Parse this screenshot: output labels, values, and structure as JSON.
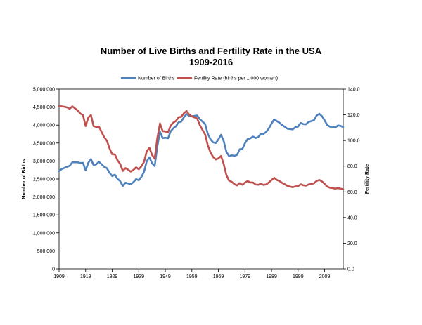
{
  "chart_data": {
    "type": "line",
    "title": "Number of Live Births and Fertility Rate in the USA",
    "subtitle": "1909-2016",
    "legend_position": "top",
    "grid": false,
    "x": {
      "start": 1909,
      "end": 2016,
      "ticks": [
        1909,
        1919,
        1929,
        1939,
        1949,
        1959,
        1969,
        1979,
        1989,
        1999,
        2009
      ],
      "tick_labels": [
        "1909",
        "1919",
        "1929",
        "1939",
        "1949",
        "1959",
        "1969",
        "1979",
        "1989",
        "1999",
        "2009"
      ]
    },
    "y_left": {
      "label": "Number of Births",
      "range": [
        0,
        5000000
      ],
      "ticks": [
        0,
        500000,
        1000000,
        1500000,
        2000000,
        2500000,
        3000000,
        3500000,
        4000000,
        4500000,
        5000000
      ],
      "tick_labels": [
        "0",
        "500,000",
        "1,000,000",
        "1,500,000",
        "2,000,000",
        "2,500,000",
        "3,000,000",
        "3,500,000",
        "4,000,000",
        "4,500,000",
        "5,000,000"
      ]
    },
    "y_right": {
      "label": "Fertility Rate",
      "range": [
        0,
        140
      ],
      "ticks": [
        0,
        20,
        40,
        60,
        80,
        100,
        120,
        140
      ],
      "tick_labels": [
        "0.0",
        "20.0",
        "40.0",
        "60.0",
        "80.0",
        "100.0",
        "120.0",
        "140.0"
      ]
    },
    "series": [
      {
        "name": "Number of Births",
        "axis": "left",
        "color": "#4f81bd",
        "x": [
          1909,
          1910,
          1911,
          1912,
          1913,
          1914,
          1915,
          1916,
          1917,
          1918,
          1919,
          1920,
          1921,
          1922,
          1923,
          1924,
          1925,
          1926,
          1927,
          1928,
          1929,
          1930,
          1931,
          1932,
          1933,
          1934,
          1935,
          1936,
          1937,
          1938,
          1939,
          1940,
          1941,
          1942,
          1943,
          1944,
          1945,
          1946,
          1947,
          1948,
          1949,
          1950,
          1951,
          1952,
          1953,
          1954,
          1955,
          1956,
          1957,
          1958,
          1959,
          1960,
          1961,
          1962,
          1963,
          1964,
          1965,
          1966,
          1967,
          1968,
          1969,
          1970,
          1971,
          1972,
          1973,
          1974,
          1975,
          1976,
          1977,
          1978,
          1979,
          1980,
          1981,
          1982,
          1983,
          1984,
          1985,
          1986,
          1987,
          1988,
          1989,
          1990,
          1991,
          1992,
          1993,
          1994,
          1995,
          1996,
          1997,
          1998,
          1999,
          2000,
          2001,
          2002,
          2003,
          2004,
          2005,
          2006,
          2007,
          2008,
          2009,
          2010,
          2011,
          2012,
          2013,
          2014,
          2015,
          2016
        ],
        "values": [
          2718000,
          2777000,
          2809000,
          2840000,
          2869000,
          2965000,
          2965000,
          2964000,
          2944000,
          2948000,
          2740000,
          2950000,
          3055000,
          2882000,
          2910000,
          2979000,
          2909000,
          2839000,
          2802000,
          2674000,
          2582000,
          2618000,
          2506000,
          2440000,
          2307000,
          2396000,
          2377000,
          2355000,
          2413000,
          2496000,
          2466000,
          2559000,
          2703000,
          2989000,
          3104000,
          2939000,
          2858000,
          3411000,
          3817000,
          3637000,
          3649000,
          3632000,
          3823000,
          3913000,
          3965000,
          4078000,
          4097000,
          4218000,
          4308000,
          4255000,
          4245000,
          4258000,
          4268000,
          4167000,
          4098000,
          4027000,
          3760000,
          3606000,
          3521000,
          3502000,
          3600000,
          3731000,
          3556000,
          3258000,
          3137000,
          3160000,
          3144000,
          3168000,
          3327000,
          3333000,
          3494000,
          3612000,
          3629000,
          3681000,
          3639000,
          3669000,
          3761000,
          3757000,
          3809000,
          3910000,
          4041000,
          4158000,
          4111000,
          4065000,
          4000000,
          3953000,
          3900000,
          3891000,
          3881000,
          3942000,
          3959000,
          4059000,
          4026000,
          4022000,
          4090000,
          4112000,
          4138000,
          4266000,
          4316000,
          4248000,
          4131000,
          3999000,
          3954000,
          3953000,
          3932000,
          3988000,
          3978000,
          3945000
        ]
      },
      {
        "name": "Fertility Rate (births per 1,000 women)",
        "axis": "right",
        "color": "#c0504d",
        "x": [
          1909,
          1910,
          1911,
          1912,
          1913,
          1914,
          1915,
          1916,
          1917,
          1918,
          1919,
          1920,
          1921,
          1922,
          1923,
          1924,
          1925,
          1926,
          1927,
          1928,
          1929,
          1930,
          1931,
          1932,
          1933,
          1934,
          1935,
          1936,
          1937,
          1938,
          1939,
          1940,
          1941,
          1942,
          1943,
          1944,
          1945,
          1946,
          1947,
          1948,
          1949,
          1950,
          1951,
          1952,
          1953,
          1954,
          1955,
          1956,
          1957,
          1958,
          1959,
          1960,
          1961,
          1962,
          1963,
          1964,
          1965,
          1966,
          1967,
          1968,
          1969,
          1970,
          1971,
          1972,
          1973,
          1974,
          1975,
          1976,
          1977,
          1978,
          1979,
          1980,
          1981,
          1982,
          1983,
          1984,
          1985,
          1986,
          1987,
          1988,
          1989,
          1990,
          1991,
          1992,
          1993,
          1994,
          1995,
          1996,
          1997,
          1998,
          1999,
          2000,
          2001,
          2002,
          2003,
          2004,
          2005,
          2006,
          2007,
          2008,
          2009,
          2010,
          2011,
          2012,
          2013,
          2014,
          2015,
          2016
        ],
        "values": [
          126.8,
          126.6,
          126.3,
          125.8,
          124.7,
          126.6,
          125.0,
          123.4,
          121.0,
          119.8,
          111.2,
          117.9,
          119.8,
          111.2,
          110.5,
          110.9,
          106.6,
          102.6,
          99.8,
          93.8,
          89.3,
          89.2,
          84.6,
          81.7,
          76.3,
          78.5,
          77.2,
          75.8,
          77.1,
          79.1,
          77.6,
          79.9,
          83.4,
          91.5,
          94.3,
          88.8,
          85.9,
          101.9,
          113.3,
          107.3,
          107.1,
          106.2,
          111.5,
          113.9,
          115.2,
          118.1,
          118.5,
          121.2,
          122.9,
          120.2,
          118.8,
          118.0,
          117.1,
          112.0,
          108.3,
          104.7,
          96.3,
          90.8,
          87.2,
          85.2,
          86.1,
          87.9,
          81.6,
          73.1,
          68.8,
          67.8,
          66.0,
          65.0,
          66.8,
          65.5,
          67.2,
          68.4,
          67.3,
          67.3,
          65.7,
          65.5,
          66.3,
          65.4,
          65.8,
          67.3,
          69.2,
          70.9,
          69.3,
          68.4,
          67.0,
          65.9,
          64.6,
          64.1,
          63.6,
          64.3,
          64.4,
          65.9,
          65.1,
          64.8,
          65.8,
          66.1,
          66.7,
          68.5,
          69.3,
          68.1,
          66.2,
          64.1,
          63.2,
          63.0,
          62.5,
          62.9,
          62.5,
          62.0
        ]
      }
    ]
  }
}
